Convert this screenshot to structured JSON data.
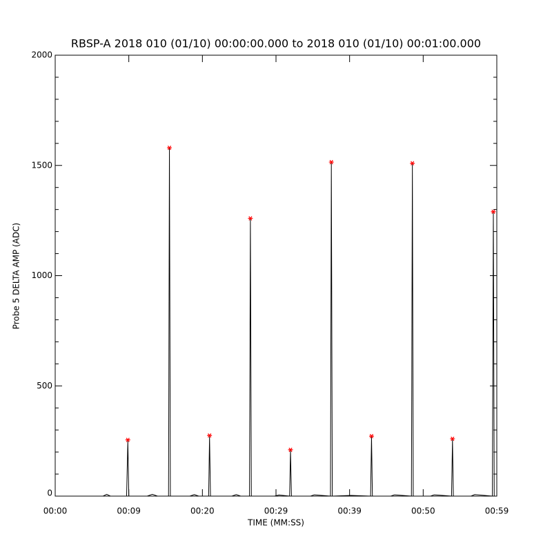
{
  "chart_data": {
    "type": "line",
    "title": "RBSP-A 2018 010 (01/10) 00:00:00.000 to 2018 010 (01/10) 00:01:00.000",
    "xlabel": "TIME (MM:SS)",
    "ylabel": "Probe 5 DELTA AMP (ADC)",
    "xlim": [
      0,
      60
    ],
    "ylim": [
      0,
      2000
    ],
    "xticks": [
      {
        "value": 0,
        "label": "00:00"
      },
      {
        "value": 10,
        "label": "00:09"
      },
      {
        "value": 20,
        "label": "00:20"
      },
      {
        "value": 30,
        "label": "00:29"
      },
      {
        "value": 40,
        "label": "00:39"
      },
      {
        "value": 50,
        "label": "00:50"
      },
      {
        "value": 60,
        "label": "00:59"
      }
    ],
    "yticks": [
      0,
      500,
      1000,
      1500,
      2000
    ],
    "yminorticks": [
      100,
      200,
      300,
      400,
      600,
      700,
      800,
      900,
      1100,
      1200,
      1300,
      1400,
      1600,
      1700,
      1800,
      1900
    ],
    "series": [
      {
        "color": "#000000",
        "x": [
          0,
          6.5,
          7.0,
          7.5,
          9.7,
          9.87,
          10.0,
          12.5,
          13.2,
          13.9,
          15.4,
          15.52,
          15.65,
          18.3,
          18.9,
          19.5,
          20.85,
          20.97,
          21.1,
          24.0,
          24.6,
          25.2,
          26.4,
          26.52,
          26.65,
          29.8,
          30.4,
          31.85,
          31.97,
          32.1,
          34.7,
          35.2,
          37.4,
          37.52,
          37.65,
          40.2,
          42.85,
          42.98,
          43.1,
          45.6,
          46.1,
          48.4,
          48.53,
          48.65,
          51.0,
          51.5,
          53.85,
          53.98,
          54.1,
          56.5,
          57.0,
          59.4,
          59.53,
          59.65,
          60
        ],
        "values": [
          0,
          0,
          8,
          0,
          0,
          250,
          0,
          0,
          8,
          0,
          0,
          1580,
          0,
          0,
          7,
          0,
          0,
          270,
          0,
          0,
          7,
          0,
          0,
          1255,
          0,
          0,
          5,
          0,
          205,
          0,
          0,
          6,
          0,
          1510,
          0,
          3,
          0,
          268,
          0,
          0,
          6,
          0,
          1505,
          0,
          0,
          6,
          0,
          255,
          0,
          0,
          7,
          0,
          1285,
          0,
          0
        ]
      },
      {
        "color": "#ff0000",
        "marker": "star",
        "x": [
          9.87,
          15.52,
          20.97,
          26.52,
          31.97,
          37.52,
          42.98,
          48.53,
          53.98,
          59.53
        ],
        "values": [
          255,
          1580,
          275,
          1260,
          210,
          1515,
          272,
          1510,
          260,
          1290
        ]
      }
    ]
  }
}
